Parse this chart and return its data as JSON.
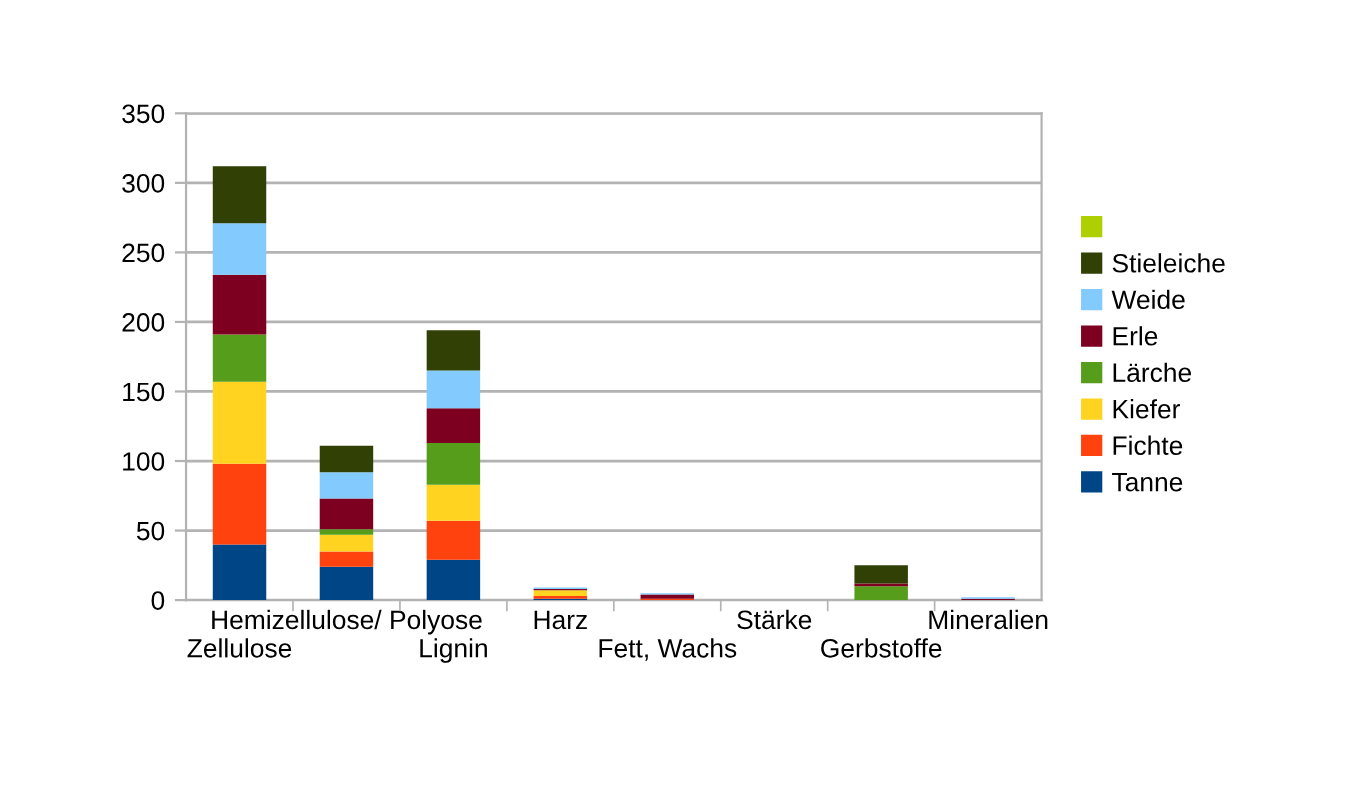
{
  "chart_data": {
    "type": "bar",
    "stacked": true,
    "categories": [
      "Zellulose",
      "Hemizellulose/ Polyose",
      "Lignin",
      "Harz",
      "Fett, Wachs",
      "Stärke",
      "Gerbstoffe",
      "Mineralien"
    ],
    "series": [
      {
        "name": "Tanne",
        "color": "#004586",
        "values": [
          40,
          24,
          29,
          1,
          0,
          0,
          0,
          0
        ]
      },
      {
        "name": "Fichte",
        "color": "#ff420e",
        "values": [
          58,
          11,
          28,
          2,
          1,
          0,
          0,
          0
        ]
      },
      {
        "name": "Kiefer",
        "color": "#ffd320",
        "values": [
          59,
          12,
          26,
          4,
          0,
          0,
          0,
          0
        ]
      },
      {
        "name": "Lärche",
        "color": "#579d1c",
        "values": [
          34,
          4,
          30,
          0,
          0,
          0,
          10,
          0
        ]
      },
      {
        "name": "Erle",
        "color": "#7e0021",
        "values": [
          43,
          22,
          25,
          1,
          3,
          0,
          2,
          1
        ]
      },
      {
        "name": "Weide",
        "color": "#83caff",
        "values": [
          37,
          19,
          27,
          1,
          1,
          0,
          0,
          1
        ]
      },
      {
        "name": "Stieleiche",
        "color": "#314004",
        "values": [
          41,
          19,
          29,
          0,
          0,
          0,
          13,
          0
        ]
      },
      {
        "color": "#aecf00",
        "values": [
          0,
          0,
          0,
          0,
          0,
          0,
          0,
          0
        ]
      }
    ],
    "ylim": [
      0,
      350
    ],
    "yticks": [
      0,
      50,
      100,
      150,
      200,
      250,
      300,
      350
    ],
    "grid": "y",
    "legend": "right"
  }
}
